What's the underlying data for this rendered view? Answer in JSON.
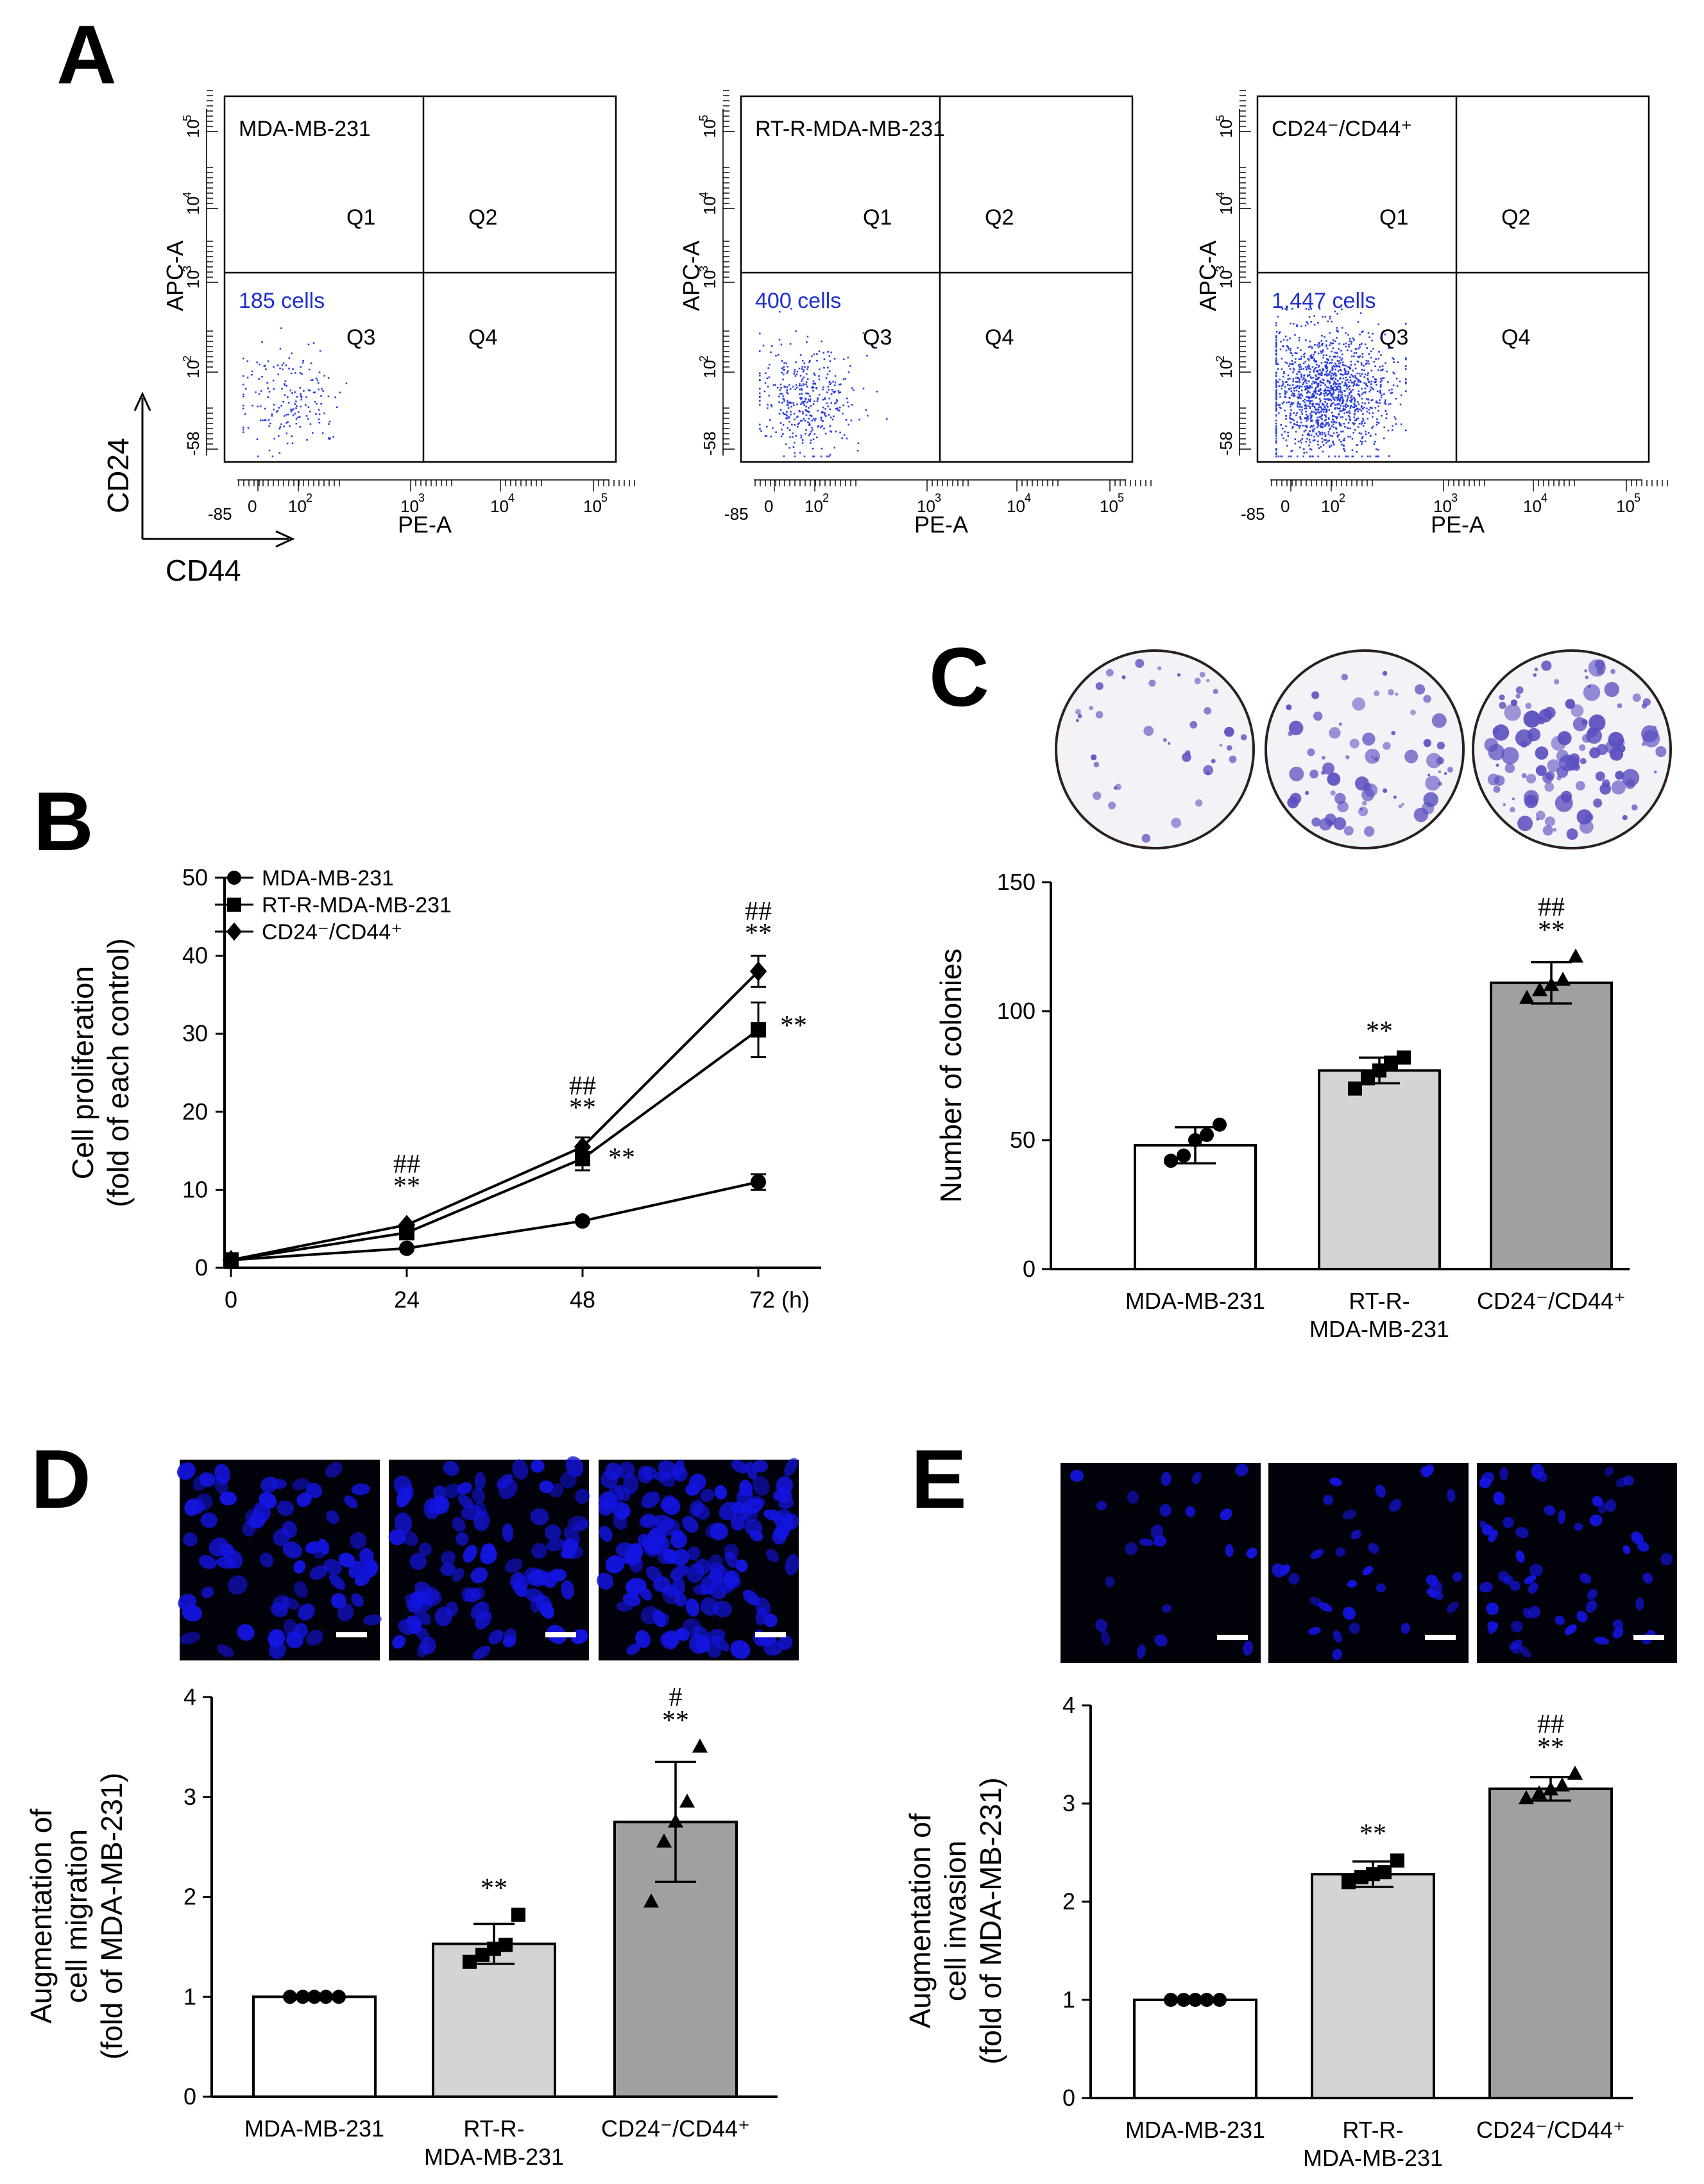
{
  "panels": {
    "A": "A",
    "B": "B",
    "C": "C",
    "D": "D",
    "E": "E"
  },
  "flow": {
    "quadrants": [
      "Q1",
      "Q2",
      "Q3",
      "Q4"
    ],
    "y_axis_label": "APC-A",
    "x_axis_label": "PE-A",
    "y_ticks": [
      "-58",
      "10",
      "10",
      "10",
      "10"
    ],
    "y_tick_exps": [
      "",
      "2",
      "3",
      "4",
      "5"
    ],
    "x_ticks": [
      "-85",
      "0",
      "10",
      "10",
      "10",
      "10"
    ],
    "x_tick_exps": [
      "",
      "",
      "2",
      "3",
      "4",
      "5"
    ],
    "corner_y": "CD24",
    "corner_x": "CD44",
    "dot_color": "#2b3ee0",
    "plots": [
      {
        "title": "MDA-MB-231",
        "count": "185 cells",
        "n": 185
      },
      {
        "title": "RT-R-MDA-MB-231",
        "count": "400 cells",
        "n": 400
      },
      {
        "title": "CD24⁻/CD44⁺",
        "count": "1,447 cells",
        "n": 1447
      }
    ]
  },
  "images": {
    "colony_stain": "#5b4fc0",
    "nuclei_color": "#1414e0"
  },
  "chart_data": [
    {
      "id": "B",
      "type": "line",
      "x": [
        0,
        24,
        48,
        72
      ],
      "x_tick_labels": [
        "0",
        "24",
        "48",
        "72 (h)"
      ],
      "ylim": [
        0,
        50
      ],
      "y_ticks": [
        "0",
        "10",
        "20",
        "30",
        "40",
        "50"
      ],
      "ylabel_line1": "Cell proliferation",
      "ylabel_line2": "(fold of each control)",
      "series": [
        {
          "name": "MDA-MB-231",
          "marker": "circle",
          "values": [
            1,
            2.5,
            6,
            11
          ],
          "errors": [
            0.3,
            0.3,
            0.4,
            1
          ]
        },
        {
          "name": "RT-R-MDA-MB-231",
          "marker": "square",
          "values": [
            1,
            4.5,
            14,
            30.5
          ],
          "errors": [
            0.3,
            0.4,
            1.5,
            3.5
          ]
        },
        {
          "name": "CD24⁻/CD44⁺",
          "marker": "diamond",
          "values": [
            1,
            5.5,
            15.5,
            38
          ],
          "errors": [
            0.3,
            0.4,
            1.2,
            2
          ]
        }
      ],
      "annotations": [
        {
          "x": 24,
          "label": "##",
          "label2": "**"
        },
        {
          "x": 48,
          "label": "##",
          "label2": "**"
        },
        {
          "x": 72,
          "label": "##",
          "label2": "**"
        },
        {
          "x": 48,
          "side": "**"
        },
        {
          "x": 72,
          "side": "**"
        }
      ]
    },
    {
      "id": "C",
      "type": "bar",
      "categories": [
        "MDA-MB-231",
        "RT-R-\nMDA-MB-231",
        "CD24⁻/CD44⁺"
      ],
      "cat_line1": [
        "MDA-MB-231",
        "RT-R-",
        "CD24⁻/CD44⁺"
      ],
      "cat_line2": [
        "",
        "MDA-MB-231",
        ""
      ],
      "values": [
        48,
        77,
        111
      ],
      "errors": [
        7,
        5,
        8
      ],
      "points": [
        [
          42,
          44,
          50,
          52,
          56
        ],
        [
          70,
          74,
          77,
          80,
          82
        ],
        [
          105,
          108,
          110,
          112,
          121
        ]
      ],
      "markers": [
        "circle",
        "square",
        "triangle"
      ],
      "bar_colors": [
        "#ffffff",
        "#d4d4d4",
        "#a0a0a3"
      ],
      "ylim": [
        0,
        150
      ],
      "y_ticks": [
        "0",
        "50",
        "100",
        "150"
      ],
      "ylabel": "Number of colonies",
      "sig": [
        [
          "",
          ""
        ],
        [
          "",
          "**"
        ],
        [
          "##",
          "**"
        ]
      ]
    },
    {
      "id": "D",
      "type": "bar",
      "cat_line1": [
        "MDA-MB-231",
        "RT-R-",
        "CD24⁻/CD44⁺"
      ],
      "cat_line2": [
        "",
        "MDA-MB-231",
        ""
      ],
      "values": [
        1,
        1.53,
        2.75
      ],
      "errors": [
        0,
        0.2,
        0.6
      ],
      "points": [
        [
          1,
          1,
          1,
          1,
          1
        ],
        [
          1.35,
          1.42,
          1.48,
          1.52,
          1.82
        ],
        [
          1.95,
          2.55,
          2.75,
          2.95,
          3.5
        ]
      ],
      "markers": [
        "circle",
        "square",
        "triangle"
      ],
      "bar_colors": [
        "#ffffff",
        "#d4d4d4",
        "#a0a0a3"
      ],
      "ylim": [
        0,
        4
      ],
      "y_ticks": [
        "0",
        "1",
        "2",
        "3",
        "4"
      ],
      "ylabel_lines": [
        "Augmentation of",
        "cell migration",
        "(fold of MDA-MB-231)"
      ],
      "sig": [
        [
          "",
          ""
        ],
        [
          "",
          "**"
        ],
        [
          "#",
          "**"
        ]
      ]
    },
    {
      "id": "E",
      "type": "bar",
      "cat_line1": [
        "MDA-MB-231",
        "RT-R-",
        "CD24⁻/CD44⁺"
      ],
      "cat_line2": [
        "",
        "MDA-MB-231",
        ""
      ],
      "values": [
        1,
        2.28,
        3.15
      ],
      "errors": [
        0,
        0.13,
        0.12
      ],
      "points": [
        [
          1,
          1,
          1,
          1,
          1
        ],
        [
          2.2,
          2.25,
          2.28,
          2.3,
          2.42
        ],
        [
          3.05,
          3.1,
          3.14,
          3.18,
          3.3
        ]
      ],
      "markers": [
        "circle",
        "square",
        "triangle"
      ],
      "bar_colors": [
        "#ffffff",
        "#d4d4d4",
        "#a0a0a3"
      ],
      "ylim": [
        0,
        4
      ],
      "y_ticks": [
        "0",
        "1",
        "2",
        "3",
        "4"
      ],
      "ylabel_lines": [
        "Augmentation of",
        "cell invasion",
        "(fold of MDA-MB-231)"
      ],
      "sig": [
        [
          "",
          ""
        ],
        [
          "",
          "**"
        ],
        [
          "##",
          "**"
        ]
      ]
    }
  ]
}
